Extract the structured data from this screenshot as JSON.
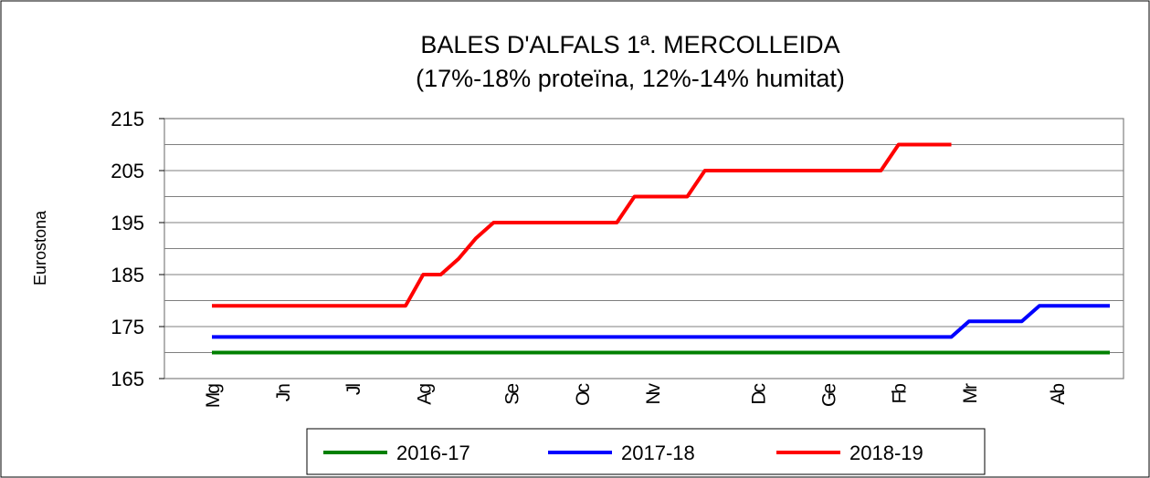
{
  "chart_data": {
    "type": "line",
    "title": "BALES D'ALFALS 1ª. MERCOLLEIDA",
    "subtitle": "(17%-18% proteïna, 12%-14% humitat)",
    "y_label": "Eurostona",
    "categories": [
      "Mg",
      null,
      null,
      null,
      "Jn",
      null,
      null,
      null,
      "Jl",
      null,
      null,
      null,
      "Ag",
      null,
      null,
      null,
      null,
      "Se",
      null,
      null,
      null,
      "Oc",
      null,
      null,
      null,
      "Nv",
      null,
      null,
      null,
      null,
      null,
      "Dc",
      null,
      null,
      null,
      "Ge",
      null,
      null,
      null,
      "Fb",
      null,
      null,
      null,
      "Mr",
      null,
      null,
      null,
      null,
      "Ab",
      null,
      null,
      null
    ],
    "series": [
      {
        "name": "2016-17",
        "color": "#008000",
        "values": [
          170,
          170,
          170,
          170,
          170,
          170,
          170,
          170,
          170,
          170,
          170,
          170,
          170,
          170,
          170,
          170,
          170,
          170,
          170,
          170,
          170,
          170,
          170,
          170,
          170,
          170,
          170,
          170,
          170,
          170,
          170,
          170,
          170,
          170,
          170,
          170,
          170,
          170,
          170,
          170,
          170,
          170,
          170,
          170,
          170,
          170,
          170,
          170,
          170,
          170,
          170,
          170
        ]
      },
      {
        "name": "2017-18",
        "color": "#0000ff",
        "values": [
          173,
          173,
          173,
          173,
          173,
          173,
          173,
          173,
          173,
          173,
          173,
          173,
          173,
          173,
          173,
          173,
          173,
          173,
          173,
          173,
          173,
          173,
          173,
          173,
          173,
          173,
          173,
          173,
          173,
          173,
          173,
          173,
          173,
          173,
          173,
          173,
          173,
          173,
          173,
          173,
          173,
          173,
          173,
          176,
          176,
          176,
          176,
          179,
          179,
          179,
          179,
          179
        ]
      },
      {
        "name": "2018-19",
        "color": "#ff0000",
        "values": [
          179,
          179,
          179,
          179,
          179,
          179,
          179,
          179,
          179,
          179,
          179,
          179,
          185,
          185,
          188,
          192,
          195,
          195,
          195,
          195,
          195,
          195,
          195,
          195,
          200,
          200,
          200,
          200,
          205,
          205,
          205,
          205,
          205,
          205,
          205,
          205,
          205,
          205,
          205,
          210,
          210,
          210,
          210,
          null,
          null,
          null,
          null,
          null,
          null,
          null,
          null,
          null
        ]
      }
    ],
    "ylim": [
      165,
      215
    ],
    "yticks": [
      165,
      175,
      185,
      195,
      205,
      215
    ],
    "minor_yticks": [
      170,
      180,
      190,
      200,
      210
    ],
    "grid": true,
    "legend": "bottom"
  }
}
